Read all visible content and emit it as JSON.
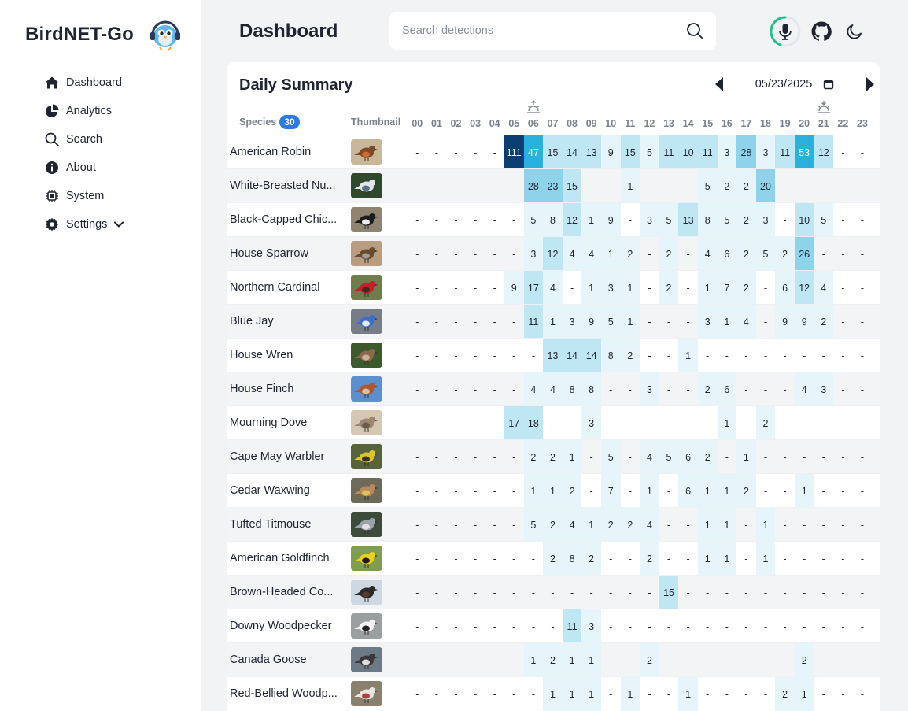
{
  "app": {
    "name": "BirdNET-Go"
  },
  "sidebar": {
    "items": [
      {
        "label": "Dashboard",
        "icon": "house-icon"
      },
      {
        "label": "Analytics",
        "icon": "pie-chart-icon"
      },
      {
        "label": "Search",
        "icon": "search-icon"
      },
      {
        "label": "About",
        "icon": "info-icon"
      },
      {
        "label": "System",
        "icon": "chip-icon"
      },
      {
        "label": "Settings",
        "icon": "gear-icon"
      }
    ]
  },
  "header": {
    "title": "Dashboard",
    "search_placeholder": "Search detections"
  },
  "summary": {
    "title": "Daily Summary",
    "date": "05/23/2025",
    "species_label": "Species",
    "species_count": "30",
    "thumbnail_label": "Thumbnail",
    "hours": [
      "00",
      "01",
      "02",
      "03",
      "04",
      "05",
      "06",
      "07",
      "08",
      "09",
      "10",
      "11",
      "12",
      "13",
      "14",
      "15",
      "16",
      "17",
      "18",
      "19",
      "20",
      "21",
      "22",
      "23"
    ],
    "sunrise_hour": "06",
    "sunset_hour": "21",
    "rows": [
      {
        "name": "American Robin",
        "counts": [
          "-",
          "-",
          "-",
          "-",
          "-",
          "111",
          "47",
          "15",
          "14",
          "13",
          "9",
          "15",
          "5",
          "11",
          "10",
          "11",
          "3",
          "28",
          "3",
          "11",
          "53",
          "12",
          "-",
          "-"
        ]
      },
      {
        "name": "White-Breasted Nu...",
        "counts": [
          "-",
          "-",
          "-",
          "-",
          "-",
          "-",
          "28",
          "23",
          "15",
          "-",
          "-",
          "1",
          "-",
          "-",
          "-",
          "5",
          "2",
          "2",
          "20",
          "-",
          "-",
          "-",
          "-",
          "-"
        ]
      },
      {
        "name": "Black-Capped Chic...",
        "counts": [
          "-",
          "-",
          "-",
          "-",
          "-",
          "-",
          "5",
          "8",
          "12",
          "1",
          "9",
          "-",
          "3",
          "5",
          "13",
          "8",
          "5",
          "2",
          "3",
          "-",
          "10",
          "5",
          "-",
          "-"
        ]
      },
      {
        "name": "House Sparrow",
        "counts": [
          "-",
          "-",
          "-",
          "-",
          "-",
          "-",
          "3",
          "12",
          "4",
          "4",
          "1",
          "2",
          "-",
          "2",
          "-",
          "4",
          "6",
          "2",
          "5",
          "2",
          "26",
          "-",
          "-",
          "-"
        ]
      },
      {
        "name": "Northern Cardinal",
        "counts": [
          "-",
          "-",
          "-",
          "-",
          "-",
          "9",
          "17",
          "4",
          "-",
          "1",
          "3",
          "1",
          "-",
          "2",
          "-",
          "1",
          "7",
          "2",
          "-",
          "6",
          "12",
          "4",
          "-",
          "-"
        ]
      },
      {
        "name": "Blue Jay",
        "counts": [
          "-",
          "-",
          "-",
          "-",
          "-",
          "-",
          "11",
          "1",
          "3",
          "9",
          "5",
          "1",
          "-",
          "-",
          "-",
          "3",
          "1",
          "4",
          "-",
          "9",
          "9",
          "2",
          "-",
          "-"
        ]
      },
      {
        "name": "House Wren",
        "counts": [
          "-",
          "-",
          "-",
          "-",
          "-",
          "-",
          "-",
          "13",
          "14",
          "14",
          "8",
          "2",
          "-",
          "-",
          "1",
          "-",
          "-",
          "-",
          "-",
          "-",
          "-",
          "-",
          "-",
          "-"
        ]
      },
      {
        "name": "House Finch",
        "counts": [
          "-",
          "-",
          "-",
          "-",
          "-",
          "-",
          "4",
          "4",
          "8",
          "8",
          "-",
          "-",
          "3",
          "-",
          "-",
          "2",
          "6",
          "-",
          "-",
          "-",
          "4",
          "3",
          "-",
          "-"
        ]
      },
      {
        "name": "Mourning Dove",
        "counts": [
          "-",
          "-",
          "-",
          "-",
          "-",
          "17",
          "18",
          "-",
          "-",
          "3",
          "-",
          "-",
          "-",
          "-",
          "-",
          "-",
          "1",
          "-",
          "2",
          "-",
          "-",
          "-",
          "-",
          "-"
        ]
      },
      {
        "name": "Cape May Warbler",
        "counts": [
          "-",
          "-",
          "-",
          "-",
          "-",
          "-",
          "2",
          "2",
          "1",
          "-",
          "5",
          "-",
          "4",
          "5",
          "6",
          "2",
          "-",
          "1",
          "-",
          "-",
          "-",
          "-",
          "-",
          "-"
        ]
      },
      {
        "name": "Cedar Waxwing",
        "counts": [
          "-",
          "-",
          "-",
          "-",
          "-",
          "-",
          "1",
          "1",
          "2",
          "-",
          "7",
          "-",
          "1",
          "-",
          "6",
          "1",
          "1",
          "2",
          "-",
          "-",
          "1",
          "-",
          "-",
          "-"
        ]
      },
      {
        "name": "Tufted Titmouse",
        "counts": [
          "-",
          "-",
          "-",
          "-",
          "-",
          "-",
          "5",
          "2",
          "4",
          "1",
          "2",
          "2",
          "4",
          "-",
          "-",
          "1",
          "1",
          "-",
          "1",
          "-",
          "-",
          "-",
          "-",
          "-"
        ]
      },
      {
        "name": "American Goldfinch",
        "counts": [
          "-",
          "-",
          "-",
          "-",
          "-",
          "-",
          "-",
          "2",
          "8",
          "2",
          "-",
          "-",
          "2",
          "-",
          "-",
          "1",
          "1",
          "-",
          "1",
          "-",
          "-",
          "-",
          "-",
          "-"
        ]
      },
      {
        "name": "Brown-Headed Co...",
        "counts": [
          "-",
          "-",
          "-",
          "-",
          "-",
          "-",
          "-",
          "-",
          "-",
          "-",
          "-",
          "-",
          "-",
          "15",
          "-",
          "-",
          "-",
          "-",
          "-",
          "-",
          "-",
          "-",
          "-",
          "-"
        ]
      },
      {
        "name": "Downy Woodpecker",
        "counts": [
          "-",
          "-",
          "-",
          "-",
          "-",
          "-",
          "-",
          "-",
          "11",
          "3",
          "-",
          "-",
          "-",
          "-",
          "-",
          "-",
          "-",
          "-",
          "-",
          "-",
          "-",
          "-",
          "-",
          "-"
        ]
      },
      {
        "name": "Canada Goose",
        "counts": [
          "-",
          "-",
          "-",
          "-",
          "-",
          "-",
          "1",
          "2",
          "1",
          "1",
          "-",
          "-",
          "2",
          "-",
          "-",
          "-",
          "-",
          "-",
          "-",
          "-",
          "2",
          "-",
          "-",
          "-"
        ]
      },
      {
        "name": "Red-Bellied Woodp...",
        "counts": [
          "-",
          "-",
          "-",
          "-",
          "-",
          "-",
          "-",
          "1",
          "1",
          "1",
          "-",
          "1",
          "-",
          "-",
          "1",
          "-",
          "-",
          "-",
          "-",
          "2",
          "1",
          "-",
          "-",
          "-"
        ]
      }
    ]
  },
  "colors": {
    "accent": "#2d7be0",
    "heat_low": "#e6f5fa",
    "heat_mid": "#bfe6f3",
    "heat_high": "#2ab0dc",
    "heat_max": "#0b3f72"
  }
}
